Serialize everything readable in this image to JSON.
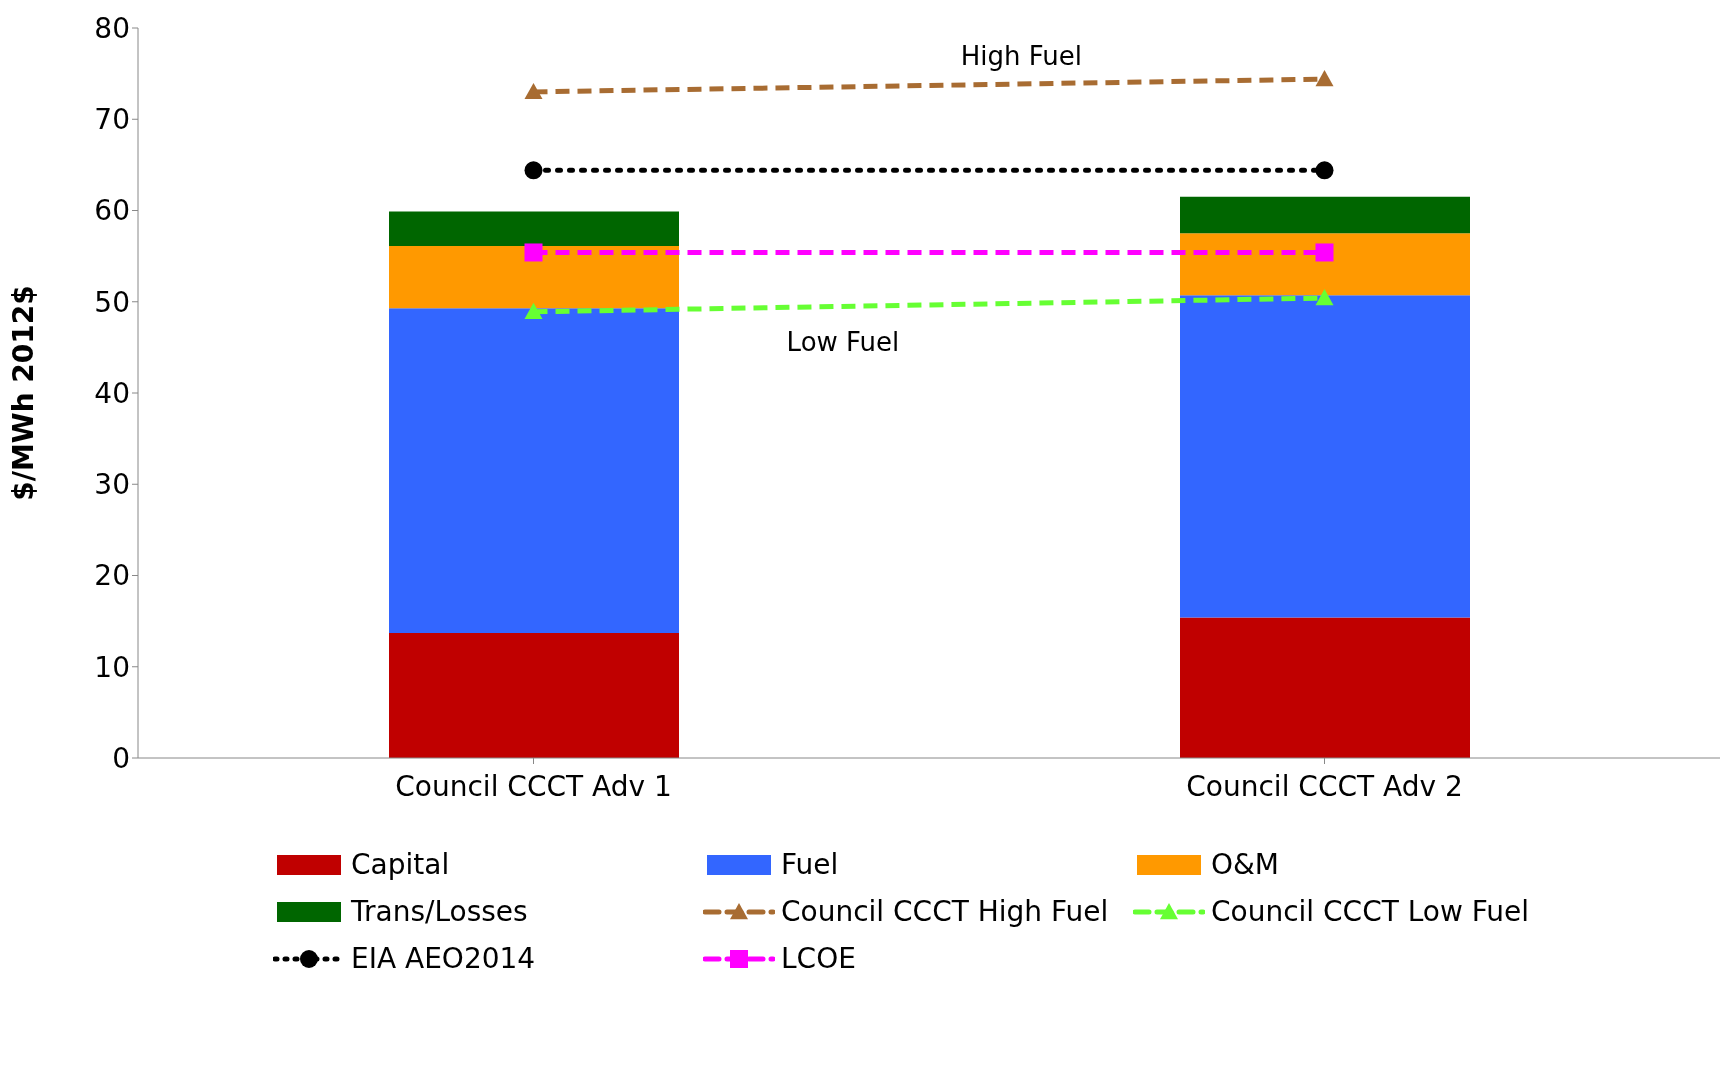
{
  "chart_data": {
    "type": "bar",
    "stacked": true,
    "ylabel": "$/MWh 2012$",
    "categories": [
      "Council CCCT Adv 1",
      "Council CCCT Adv 2"
    ],
    "ylim": [
      0,
      80
    ],
    "yticks": [
      0,
      10,
      20,
      30,
      40,
      50,
      60,
      70,
      80
    ],
    "grid": false,
    "legend": "bottom",
    "series": [
      {
        "name": "Capital",
        "color": "#c00000",
        "values": [
          13.7,
          15.4
        ]
      },
      {
        "name": "Fuel",
        "color": "#3366ff",
        "values": [
          35.6,
          35.3
        ]
      },
      {
        "name": "O&M",
        "color": "#ff9900",
        "values": [
          6.8,
          6.8
        ]
      },
      {
        "name": "Trans/Losses",
        "color": "#006600",
        "values": [
          3.8,
          4.0
        ]
      },
      {
        "name": "Council CCCT High Fuel",
        "type": "line",
        "color": "#a86c32",
        "marker": "triangle",
        "line_style": "dashed",
        "values": [
          73.0,
          74.4
        ]
      },
      {
        "name": "Council CCCT Low Fuel",
        "type": "line",
        "color": "#66ff33",
        "marker": "triangle",
        "line_style": "dashed",
        "values": [
          48.9,
          50.4
        ]
      },
      {
        "name": "EIA AEO2014",
        "type": "line",
        "color": "#000000",
        "marker": "circle",
        "line_style": "dotted",
        "values": [
          64.4,
          64.4
        ]
      },
      {
        "name": "LCOE",
        "type": "line",
        "color": "#ff00ff",
        "marker": "square",
        "line_style": "dashed",
        "values": [
          55.4,
          55.4
        ]
      }
    ],
    "annotations": [
      {
        "text": "High Fuel",
        "y": 74.0
      },
      {
        "text": "Low Fuel",
        "y": 49.6
      }
    ]
  }
}
